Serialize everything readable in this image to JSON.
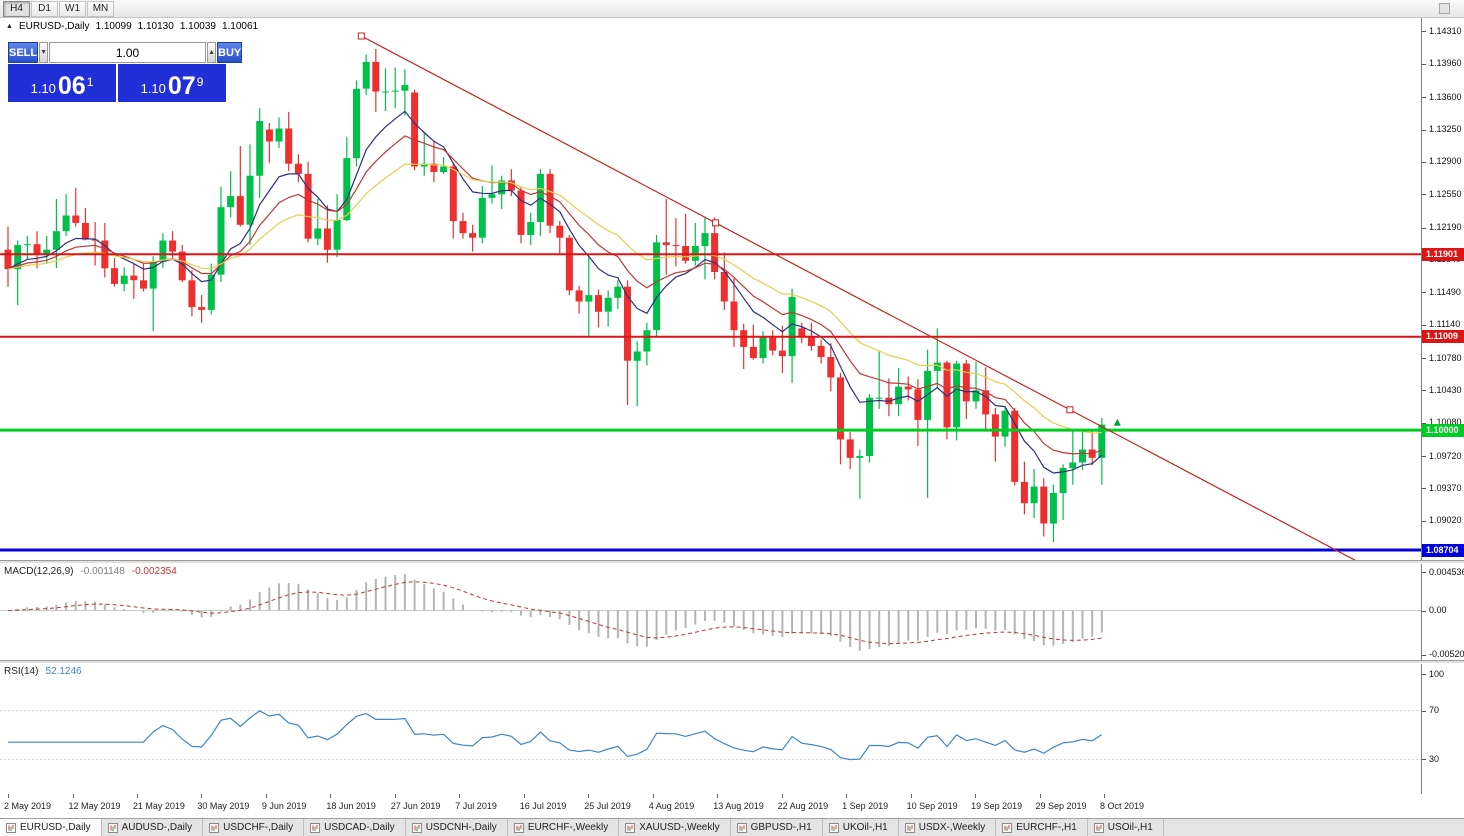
{
  "toolbar": {
    "timeframes": [
      {
        "label": "H4",
        "active": true
      },
      {
        "label": "D1",
        "active": false
      },
      {
        "label": "W1",
        "active": false
      },
      {
        "label": "MN",
        "active": false
      }
    ]
  },
  "one_click": {
    "sell_label": "SELL",
    "buy_label": "BUY",
    "volume": "1.00",
    "sell_price": {
      "small": "1.10",
      "big": "06",
      "sup": "1"
    },
    "buy_price": {
      "small": "1.10",
      "big": "07",
      "sup": "9"
    }
  },
  "chart_data": {
    "type": "candlestick",
    "symbol": "EURUSD-,Daily",
    "ohlc_display": {
      "open": "1.10099",
      "high": "1.10130",
      "low": "1.10039",
      "close": "1.10061"
    },
    "ylim": [
      1.08596,
      1.14455
    ],
    "y_ticks": [
      "1.14310",
      "1.13960",
      "1.13600",
      "1.13250",
      "1.12900",
      "1.12550",
      "1.12190",
      "1.11840",
      "1.11490",
      "1.11140",
      "1.10780",
      "1.10430",
      "1.10080",
      "1.09720",
      "1.09370",
      "1.09020"
    ],
    "colors": {
      "bull": "#00c04a",
      "bear": "#ee2f2f"
    },
    "hlines": [
      {
        "price": 1.11901,
        "label": "1.11901",
        "color": "#dd1414",
        "width": 2
      },
      {
        "price": 1.11009,
        "label": "1.11009",
        "color": "#dd1414",
        "width": 2
      },
      {
        "price": 1.1,
        "label": "1.10000",
        "color": "#00cc22",
        "width": 3
      },
      {
        "price": 1.08704,
        "label": "1.08704",
        "color": "#0000dd",
        "width": 3
      }
    ],
    "trendline": {
      "color": "#cc2020",
      "width": 1.2,
      "ray": true,
      "anchors": [
        {
          "i": 36.5,
          "price": 1.1426
        },
        {
          "i": 109.7,
          "price": 1.1022
        }
      ]
    },
    "marker": {
      "i": 114.6,
      "price": 1.1008,
      "color": "#00a040",
      "name": "up-arrow"
    },
    "moving_averages": [
      {
        "period": 8,
        "method": "ema",
        "color": "#2a3080"
      },
      {
        "period": 14,
        "method": "ema",
        "color": "#c03838"
      },
      {
        "period": 24,
        "method": "ema",
        "color": "#e2cf4e"
      }
    ],
    "date_ticks": [
      "2 May 2019",
      "12 May 2019",
      "21 May 2019",
      "30 May 2019",
      "9 Jun 2019",
      "18 Jun 2019",
      "27 Jun 2019",
      "7 Jul 2019",
      "16 Jul 2019",
      "25 Jul 2019",
      "4 Aug 2019",
      "13 Aug 2019",
      "22 Aug 2019",
      "1 Sep 2019",
      "10 Sep 2019",
      "19 Sep 2019",
      "29 Sep 2019",
      "8 Oct 2019"
    ],
    "candles": [
      [
        1.1195,
        1.122,
        1.1155,
        1.1174
      ],
      [
        1.1174,
        1.1205,
        1.1135,
        1.12
      ],
      [
        1.12,
        1.121,
        1.1185,
        1.1201
      ],
      [
        1.1201,
        1.1215,
        1.1175,
        1.119
      ],
      [
        1.119,
        1.121,
        1.118,
        1.1195
      ],
      [
        1.1195,
        1.125,
        1.1175,
        1.1215
      ],
      [
        1.1215,
        1.1255,
        1.121,
        1.1232
      ],
      [
        1.1232,
        1.1262,
        1.122,
        1.1224
      ],
      [
        1.1224,
        1.124,
        1.1205,
        1.1206
      ],
      [
        1.1206,
        1.1225,
        1.1178,
        1.1205
      ],
      [
        1.1205,
        1.1224,
        1.1165,
        1.1175
      ],
      [
        1.1175,
        1.1186,
        1.1155,
        1.1158
      ],
      [
        1.1158,
        1.1176,
        1.115,
        1.1167
      ],
      [
        1.1167,
        1.118,
        1.1142,
        1.1162
      ],
      [
        1.1162,
        1.118,
        1.115,
        1.1153
      ],
      [
        1.1153,
        1.1188,
        1.1107,
        1.1182
      ],
      [
        1.1182,
        1.1213,
        1.1175,
        1.1205
      ],
      [
        1.1205,
        1.1215,
        1.1186,
        1.1193
      ],
      [
        1.1193,
        1.12,
        1.116,
        1.1162
      ],
      [
        1.1162,
        1.1173,
        1.1123,
        1.1133
      ],
      [
        1.1133,
        1.1146,
        1.1116,
        1.113
      ],
      [
        1.113,
        1.118,
        1.1125,
        1.1168
      ],
      [
        1.1168,
        1.1263,
        1.116,
        1.1241
      ],
      [
        1.1241,
        1.128,
        1.123,
        1.1253
      ],
      [
        1.1253,
        1.1307,
        1.122,
        1.1222
      ],
      [
        1.1222,
        1.1309,
        1.12,
        1.1275
      ],
      [
        1.1275,
        1.1348,
        1.1251,
        1.1334
      ],
      [
        1.1325,
        1.1332,
        1.1289,
        1.1312
      ],
      [
        1.1312,
        1.1338,
        1.1305,
        1.1326
      ],
      [
        1.1326,
        1.1344,
        1.128,
        1.1288
      ],
      [
        1.1288,
        1.1298,
        1.1268,
        1.1277
      ],
      [
        1.1277,
        1.129,
        1.1203,
        1.1207
      ],
      [
        1.1207,
        1.125,
        1.12,
        1.1218
      ],
      [
        1.1218,
        1.1243,
        1.1181,
        1.1195
      ],
      [
        1.1195,
        1.1255,
        1.1187,
        1.1227
      ],
      [
        1.1227,
        1.1317,
        1.1226,
        1.1294
      ],
      [
        1.1294,
        1.1378,
        1.1285,
        1.1369
      ],
      [
        1.1369,
        1.1406,
        1.1362,
        1.1398
      ],
      [
        1.1398,
        1.1412,
        1.1344,
        1.1366
      ],
      [
        1.1366,
        1.1391,
        1.1345,
        1.1366
      ],
      [
        1.1366,
        1.1392,
        1.1348,
        1.1367
      ],
      [
        1.1367,
        1.139,
        1.134,
        1.1373
      ],
      [
        1.1365,
        1.1368,
        1.1281,
        1.1285
      ],
      [
        1.1285,
        1.1322,
        1.1275,
        1.1288
      ],
      [
        1.1288,
        1.1312,
        1.1268,
        1.1279
      ],
      [
        1.1279,
        1.1295,
        1.1277,
        1.1285
      ],
      [
        1.1285,
        1.1289,
        1.1207,
        1.1226
      ],
      [
        1.1226,
        1.1235,
        1.1207,
        1.1213
      ],
      [
        1.1213,
        1.1222,
        1.1193,
        1.1208
      ],
      [
        1.1208,
        1.1264,
        1.1202,
        1.1251
      ],
      [
        1.1251,
        1.1286,
        1.1245,
        1.1255
      ],
      [
        1.1255,
        1.1275,
        1.1239,
        1.127
      ],
      [
        1.127,
        1.1282,
        1.1253,
        1.1259
      ],
      [
        1.1259,
        1.1263,
        1.1202,
        1.1211
      ],
      [
        1.1211,
        1.1235,
        1.12,
        1.1225
      ],
      [
        1.1225,
        1.1282,
        1.121,
        1.1277
      ],
      [
        1.1277,
        1.1282,
        1.1213,
        1.1221
      ],
      [
        1.1221,
        1.1226,
        1.1191,
        1.1208
      ],
      [
        1.1208,
        1.1211,
        1.1146,
        1.1151
      ],
      [
        1.1151,
        1.1156,
        1.1126,
        1.1139
      ],
      [
        1.1139,
        1.1187,
        1.1101,
        1.1146
      ],
      [
        1.1146,
        1.1152,
        1.1111,
        1.1128
      ],
      [
        1.1128,
        1.1151,
        1.1112,
        1.1143
      ],
      [
        1.1143,
        1.1162,
        1.1131,
        1.1155
      ],
      [
        1.1155,
        1.1162,
        1.1027,
        1.1075
      ],
      [
        1.1075,
        1.1096,
        1.1026,
        1.1085
      ],
      [
        1.1085,
        1.1116,
        1.107,
        1.1108
      ],
      [
        1.1108,
        1.1211,
        1.1101,
        1.1203
      ],
      [
        1.1203,
        1.125,
        1.1168,
        1.12
      ],
      [
        1.12,
        1.1229,
        1.1177,
        1.1199
      ],
      [
        1.1199,
        1.1234,
        1.118,
        1.1183
      ],
      [
        1.1183,
        1.1224,
        1.1178,
        1.1199
      ],
      [
        1.1199,
        1.123,
        1.1163,
        1.1213
      ],
      [
        1.1213,
        1.123,
        1.1163,
        1.1171
      ],
      [
        1.1171,
        1.1192,
        1.113,
        1.1139
      ],
      [
        1.1139,
        1.1164,
        1.109,
        1.1108
      ],
      [
        1.1108,
        1.1115,
        1.1066,
        1.109
      ],
      [
        1.109,
        1.1114,
        1.1076,
        1.1078
      ],
      [
        1.1078,
        1.1107,
        1.1072,
        1.11
      ],
      [
        1.11,
        1.1108,
        1.1081,
        1.1086
      ],
      [
        1.1086,
        1.1113,
        1.1062,
        1.108
      ],
      [
        1.108,
        1.1153,
        1.1051,
        1.1144
      ],
      [
        1.111,
        1.1116,
        1.1094,
        1.1101
      ],
      [
        1.1101,
        1.1116,
        1.1086,
        1.1091
      ],
      [
        1.1091,
        1.1098,
        1.1072,
        1.1079
      ],
      [
        1.1079,
        1.1094,
        1.1042,
        1.1057
      ],
      [
        1.1057,
        1.1062,
        1.0963,
        1.099
      ],
      [
        1.099,
        1.0998,
        1.0958,
        1.097
      ],
      [
        1.097,
        1.0979,
        1.0926,
        1.0972
      ],
      [
        1.0972,
        1.1039,
        1.0965,
        1.1035
      ],
      [
        1.1035,
        1.1085,
        1.1023,
        1.1035
      ],
      [
        1.1035,
        1.1056,
        1.1015,
        1.1028
      ],
      [
        1.1028,
        1.1067,
        1.1015,
        1.1047
      ],
      [
        1.1047,
        1.1058,
        1.1032,
        1.1044
      ],
      [
        1.1044,
        1.1055,
        1.0983,
        1.1011
      ],
      [
        1.1011,
        1.1087,
        1.0927,
        1.1064
      ],
      [
        1.1064,
        1.111,
        1.1045,
        1.1073
      ],
      [
        1.1073,
        1.1075,
        1.099,
        1.1003
      ],
      [
        1.1003,
        1.1075,
        1.0989,
        1.1072
      ],
      [
        1.1072,
        1.1076,
        1.1012,
        1.1031
      ],
      [
        1.1031,
        1.1074,
        1.1023,
        1.1043
      ],
      [
        1.1043,
        1.1068,
        1.1,
        1.1017
      ],
      [
        1.1017,
        1.1024,
        1.0966,
        1.0993
      ],
      [
        1.0993,
        1.1024,
        1.0982,
        1.1021
      ],
      [
        1.1021,
        1.1024,
        1.094,
        1.0944
      ],
      [
        1.0944,
        1.0966,
        1.0909,
        1.0921
      ],
      [
        1.0921,
        1.0958,
        1.0905,
        1.0939
      ],
      [
        1.0939,
        1.0948,
        1.0885,
        1.0899
      ],
      [
        1.0899,
        1.0941,
        1.0879,
        1.0932
      ],
      [
        1.0932,
        1.0963,
        1.0903,
        1.0959
      ],
      [
        1.0959,
        1.0999,
        1.0941,
        1.0965
      ],
      [
        1.0965,
        1.0999,
        1.0957,
        1.0979
      ],
      [
        1.0979,
        1.1,
        1.0962,
        1.097
      ],
      [
        1.097,
        1.1013,
        1.0941,
        1.1006
      ]
    ],
    "indicators": {
      "macd": {
        "label": "MACD(12,26,9)",
        "value": "-0.001148",
        "signal": "-0.002354",
        "fast": 12,
        "slow": 26,
        "smoothing": 9,
        "ylim": [
          -0.00585,
          0.0055
        ],
        "ticks": [
          {
            "value": 0.004536,
            "label": "0.004536"
          },
          {
            "value": 0,
            "label": "0.00"
          },
          {
            "value": -0.005205,
            "label": "-0.005205"
          }
        ],
        "histogram_color": "#b4b4b4",
        "signal_color": "#c23535"
      },
      "rsi": {
        "label": "RSI(14)",
        "period": 14,
        "value": "52.1246",
        "ticks": [
          {
            "value": 100,
            "label": "100"
          },
          {
            "value": 70,
            "label": "70"
          },
          {
            "value": 30,
            "label": "30"
          }
        ],
        "levels": [
          70,
          30
        ],
        "line_color": "#3a86cc"
      }
    }
  },
  "date_axis": {
    "labels": [
      "2 May 2019",
      "12 May 2019",
      "21 May 2019",
      "30 May 2019",
      "9 Jun 2019",
      "18 Jun 2019",
      "27 Jun 2019",
      "7 Jul 2019",
      "16 Jul 2019",
      "25 Jul 2019",
      "4 Aug 2019",
      "13 Aug 2019",
      "22 Aug 2019",
      "1 Sep 2019",
      "10 Sep 2019",
      "19 Sep 2019",
      "29 Sep 2019",
      "8 Oct 2019"
    ]
  },
  "tabs": [
    {
      "label": "EURUSD-,Daily",
      "active": true
    },
    {
      "label": "AUDUSD-,Daily",
      "active": false
    },
    {
      "label": "USDCHF-,Daily",
      "active": false
    },
    {
      "label": "USDCAD-,Daily",
      "active": false
    },
    {
      "label": "USDCNH-,Daily",
      "active": false
    },
    {
      "label": "EURCHF-,Weekly",
      "active": false
    },
    {
      "label": "XAUUSD-,Weekly",
      "active": false
    },
    {
      "label": "GBPUSD-,H1",
      "active": false
    },
    {
      "label": "UKOil-,H1",
      "active": false
    },
    {
      "label": "USDX-,Weekly",
      "active": false
    },
    {
      "label": "EURCHF-,H1",
      "active": false
    },
    {
      "label": "USOil-,H1",
      "active": false
    }
  ]
}
